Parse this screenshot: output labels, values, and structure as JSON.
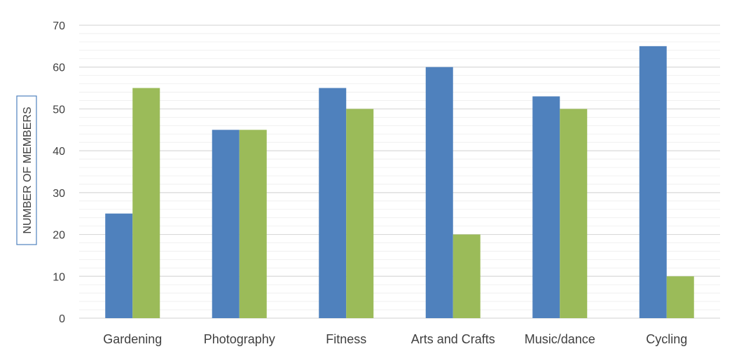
{
  "chart_data": {
    "type": "bar",
    "categories": [
      "Gardening",
      "Photography",
      "Fitness",
      "Arts and Crafts",
      "Music/dance",
      "Cycling"
    ],
    "series": [
      {
        "values": [
          25,
          45,
          55,
          60,
          53,
          65
        ],
        "color": "#4F81BD"
      },
      {
        "values": [
          55,
          45,
          50,
          20,
          50,
          10
        ],
        "color": "#9BBB59"
      }
    ],
    "title": "",
    "xlabel": "",
    "ylabel": "NUMBER OF MEMBERS",
    "ylim": [
      0,
      70
    ],
    "yticks": [
      0,
      10,
      20,
      30,
      40,
      50,
      60,
      70
    ],
    "grid": true,
    "grid_color": "#D9D9D9"
  }
}
